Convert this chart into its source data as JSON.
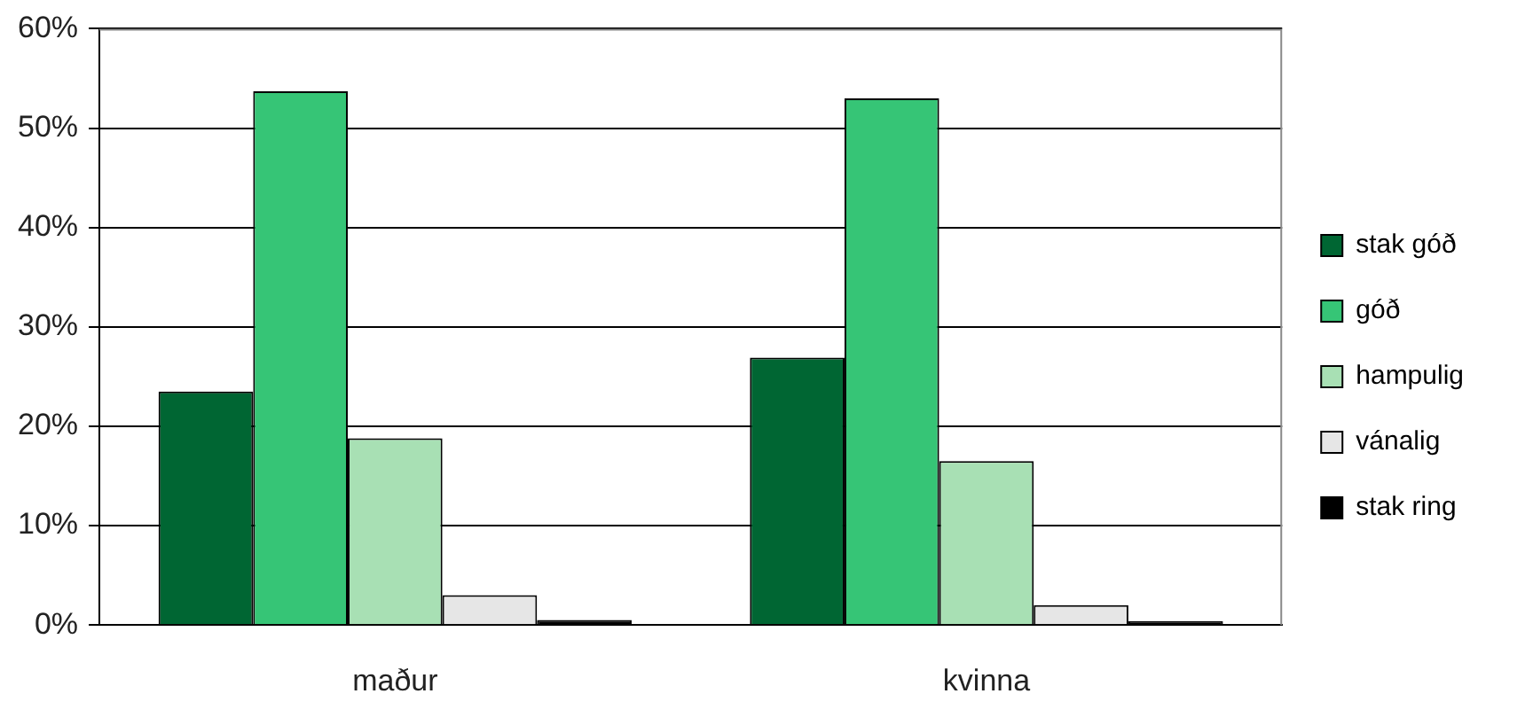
{
  "chart_data": {
    "type": "bar",
    "categories": [
      "maður",
      "kvinna"
    ],
    "series": [
      {
        "name": "stak góð",
        "color": "#006633",
        "values": [
          23.5,
          26.9
        ]
      },
      {
        "name": "góð",
        "color": "#36c576",
        "values": [
          53.7,
          53.0
        ]
      },
      {
        "name": "hampulig",
        "color": "#a8e0b4",
        "values": [
          18.8,
          16.5
        ]
      },
      {
        "name": "vánalig",
        "color": "#e6e6e6",
        "values": [
          3.0,
          2.0
        ]
      },
      {
        "name": "stak ring",
        "color": "#000000",
        "values": [
          0.5,
          0.4
        ]
      }
    ],
    "ylim": [
      0,
      60
    ],
    "yticks": [
      {
        "value": 0,
        "label": "0%"
      },
      {
        "value": 10,
        "label": "10%"
      },
      {
        "value": 20,
        "label": "20%"
      },
      {
        "value": 30,
        "label": "30%"
      },
      {
        "value": 40,
        "label": "40%"
      },
      {
        "value": 50,
        "label": "50%"
      },
      {
        "value": 60,
        "label": "60%"
      }
    ],
    "grid": "y",
    "legend": "right"
  }
}
